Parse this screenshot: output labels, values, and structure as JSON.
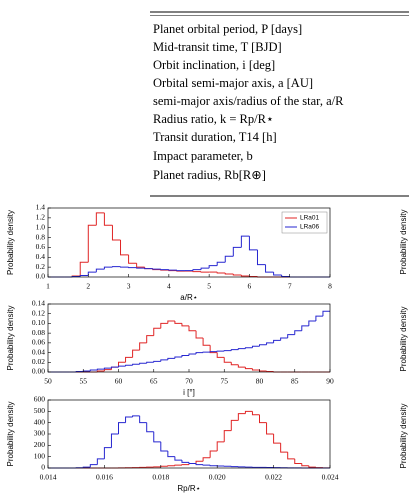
{
  "table": {
    "rows": [
      "Planet orbital period, P [days]",
      "Mid-transit time, T [BJD]",
      "Orbit inclination, i [deg]",
      "Orbital semi-major axis, a [AU]",
      "semi-major axis/radius of the star, a/R",
      "Radius ratio, k = Rp/R⋆",
      "Transit duration, T14 [h]",
      "Impact parameter, b",
      "Planet radius, Rb[R⊕]"
    ]
  },
  "right_labels": [
    "Probability density",
    "Probability density",
    "Probability density"
  ],
  "chart_data": [
    {
      "type": "histogram",
      "xlabel": "a/R⋆",
      "ylabel": "Probability density",
      "legend": "upper right",
      "xlim": [
        1,
        8
      ],
      "ylim": [
        0,
        1.4
      ],
      "xticks": [
        1,
        2,
        3,
        4,
        5,
        6,
        7,
        8
      ],
      "yticks": [
        {
          "value": 0,
          "label": "0.0"
        },
        {
          "value": 0.2,
          "label": "0.2"
        },
        {
          "value": 0.4,
          "label": "0.4"
        },
        {
          "value": 0.6,
          "label": "0.6"
        },
        {
          "value": 0.8,
          "label": "0.8"
        },
        {
          "value": 1,
          "label": "1.0"
        },
        {
          "value": 1.2,
          "label": "1.2"
        },
        {
          "value": 1.4,
          "label": "1.4"
        }
      ],
      "bins": [
        1,
        1.2,
        1.4,
        1.6,
        1.8,
        2,
        2.2,
        2.4,
        2.6,
        2.8,
        3,
        3.2,
        3.4,
        3.6,
        3.8,
        4,
        4.2,
        4.4,
        4.6,
        4.8,
        5,
        5.2,
        5.4,
        5.6,
        5.8,
        6,
        6.2,
        6.4,
        6.6,
        6.8,
        7,
        7.2,
        7.4,
        7.6,
        7.8,
        8
      ],
      "series": [
        {
          "name": "LRa01",
          "color": "#e02424",
          "values": [
            0,
            0,
            0,
            0.02,
            0.3,
            1.05,
            1.3,
            1.05,
            0.75,
            0.45,
            0.28,
            0.2,
            0.17,
            0.15,
            0.14,
            0.13,
            0.12,
            0.12,
            0.11,
            0.1,
            0.1,
            0.08,
            0.06,
            0.04,
            0.02,
            0.01,
            0,
            0,
            0,
            0,
            0,
            0,
            0,
            0,
            0
          ]
        },
        {
          "name": "LRa06",
          "color": "#2626d0",
          "values": [
            0,
            0,
            0,
            0.01,
            0.03,
            0.1,
            0.16,
            0.2,
            0.21,
            0.2,
            0.19,
            0.18,
            0.17,
            0.16,
            0.15,
            0.14,
            0.13,
            0.13,
            0.15,
            0.18,
            0.23,
            0.3,
            0.42,
            0.6,
            0.83,
            0.55,
            0.25,
            0.1,
            0.04,
            0.01,
            0,
            0,
            0,
            0,
            0
          ]
        }
      ]
    },
    {
      "type": "histogram",
      "xlabel": "i [°]",
      "ylabel": "Probability density",
      "xlim": [
        50,
        90
      ],
      "ylim": [
        0,
        0.14
      ],
      "xticks": [
        50,
        55,
        60,
        65,
        70,
        75,
        80,
        85,
        90
      ],
      "yticks": [
        {
          "value": 0,
          "label": "0.00"
        },
        {
          "value": 0.02,
          "label": "0.02"
        },
        {
          "value": 0.04,
          "label": "0.04"
        },
        {
          "value": 0.06,
          "label": "0.06"
        },
        {
          "value": 0.08,
          "label": "0.08"
        },
        {
          "value": 0.1,
          "label": "0.10"
        },
        {
          "value": 0.12,
          "label": "0.12"
        },
        {
          "value": 0.14,
          "label": "0.14"
        }
      ],
      "bins": [
        50,
        51,
        52,
        53,
        54,
        55,
        56,
        57,
        58,
        59,
        60,
        61,
        62,
        63,
        64,
        65,
        66,
        67,
        68,
        69,
        70,
        71,
        72,
        73,
        74,
        75,
        76,
        77,
        78,
        79,
        80,
        81,
        82,
        83,
        84,
        85,
        86,
        87,
        88,
        89,
        90
      ],
      "series": [
        {
          "color": "#e02424",
          "values": [
            0,
            0,
            0,
            0,
            0,
            0,
            0,
            0.002,
            0.005,
            0.01,
            0.02,
            0.03,
            0.045,
            0.06,
            0.075,
            0.09,
            0.1,
            0.105,
            0.1,
            0.095,
            0.085,
            0.07,
            0.055,
            0.04,
            0.03,
            0.02,
            0.015,
            0.01,
            0.007,
            0.004,
            0.002,
            0.001,
            0,
            0,
            0,
            0,
            0,
            0,
            0,
            0
          ]
        },
        {
          "color": "#2626d0",
          "values": [
            0,
            0,
            0,
            0,
            0.001,
            0.002,
            0.004,
            0.006,
            0.008,
            0.01,
            0.012,
            0.014,
            0.016,
            0.018,
            0.02,
            0.022,
            0.025,
            0.028,
            0.031,
            0.034,
            0.037,
            0.04,
            0.041,
            0.042,
            0.043,
            0.044,
            0.046,
            0.048,
            0.05,
            0.053,
            0.056,
            0.06,
            0.065,
            0.07,
            0.077,
            0.085,
            0.095,
            0.105,
            0.115,
            0.125
          ]
        }
      ]
    },
    {
      "type": "histogram",
      "xlabel": "Rp/R⋆",
      "ylabel": "Probability density",
      "xlim": [
        0.014,
        0.024
      ],
      "ylim": [
        0,
        600
      ],
      "xticks": [
        0.014,
        0.016,
        0.018,
        {
          "value": 0.02,
          "label": "0.020"
        },
        0.022,
        0.024
      ],
      "yticks": [
        0,
        100,
        200,
        300,
        400,
        500,
        600
      ],
      "bins": [
        0.014,
        0.01425,
        0.0145,
        0.01475,
        0.015,
        0.01525,
        0.0155,
        0.01575,
        0.016,
        0.01625,
        0.0165,
        0.01675,
        0.017,
        0.01725,
        0.0175,
        0.01775,
        0.018,
        0.01825,
        0.0185,
        0.01875,
        0.019,
        0.01925,
        0.0195,
        0.01975,
        0.02,
        0.02025,
        0.0205,
        0.02075,
        0.021,
        0.02125,
        0.0215,
        0.02175,
        0.022,
        0.02225,
        0.0225,
        0.02275,
        0.023,
        0.02325,
        0.0235,
        0.02375,
        0.024
      ],
      "series": [
        {
          "color": "#e02424",
          "values": [
            0,
            0,
            0,
            0,
            0,
            0,
            0,
            0,
            0,
            0,
            1,
            2,
            3,
            5,
            8,
            10,
            15,
            20,
            25,
            30,
            40,
            60,
            90,
            150,
            230,
            330,
            420,
            480,
            500,
            470,
            400,
            300,
            220,
            140,
            80,
            40,
            20,
            8,
            3,
            1
          ]
        },
        {
          "color": "#2626d0",
          "values": [
            0,
            0,
            0,
            0,
            2,
            8,
            30,
            80,
            180,
            300,
            400,
            450,
            460,
            400,
            320,
            230,
            150,
            100,
            70,
            50,
            40,
            30,
            25,
            20,
            18,
            15,
            12,
            10,
            8,
            6,
            5,
            4,
            3,
            2,
            1,
            1,
            0,
            0,
            0,
            0
          ]
        }
      ]
    }
  ]
}
